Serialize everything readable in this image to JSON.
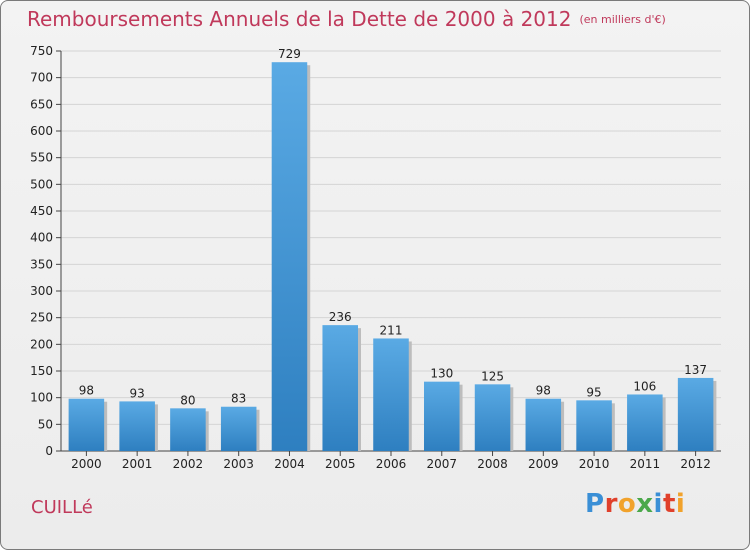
{
  "header": {
    "title": "Remboursements Annuels de la Dette de 2000 à 2012",
    "unit": "(en milliers d'€)"
  },
  "footer": {
    "commune": "CUILLé",
    "logo_text": "Proxiti"
  },
  "colors": {
    "title": "#c0395b",
    "bar_top": "#5aaae4",
    "bar_bottom": "#2e7fc0",
    "grid": "#d4d4d4",
    "logo": [
      "#3a8fd6",
      "#e0402b",
      "#f1a22b",
      "#4aa84a",
      "#3a8fd6",
      "#e0402b",
      "#f1a22b"
    ]
  },
  "chart_data": {
    "type": "bar",
    "title": "Remboursements Annuels de la Dette de 2000 à 2012",
    "xlabel": "",
    "ylabel": "",
    "categories": [
      "2000",
      "2001",
      "2002",
      "2003",
      "2004",
      "2005",
      "2006",
      "2007",
      "2008",
      "2009",
      "2010",
      "2011",
      "2012"
    ],
    "values": [
      98,
      93,
      80,
      83,
      729,
      236,
      211,
      130,
      125,
      98,
      95,
      106,
      137
    ],
    "ylim": [
      0,
      750
    ],
    "yticks": [
      0,
      50,
      100,
      150,
      200,
      250,
      300,
      350,
      400,
      450,
      500,
      550,
      600,
      650,
      700,
      750
    ],
    "grid": true
  }
}
